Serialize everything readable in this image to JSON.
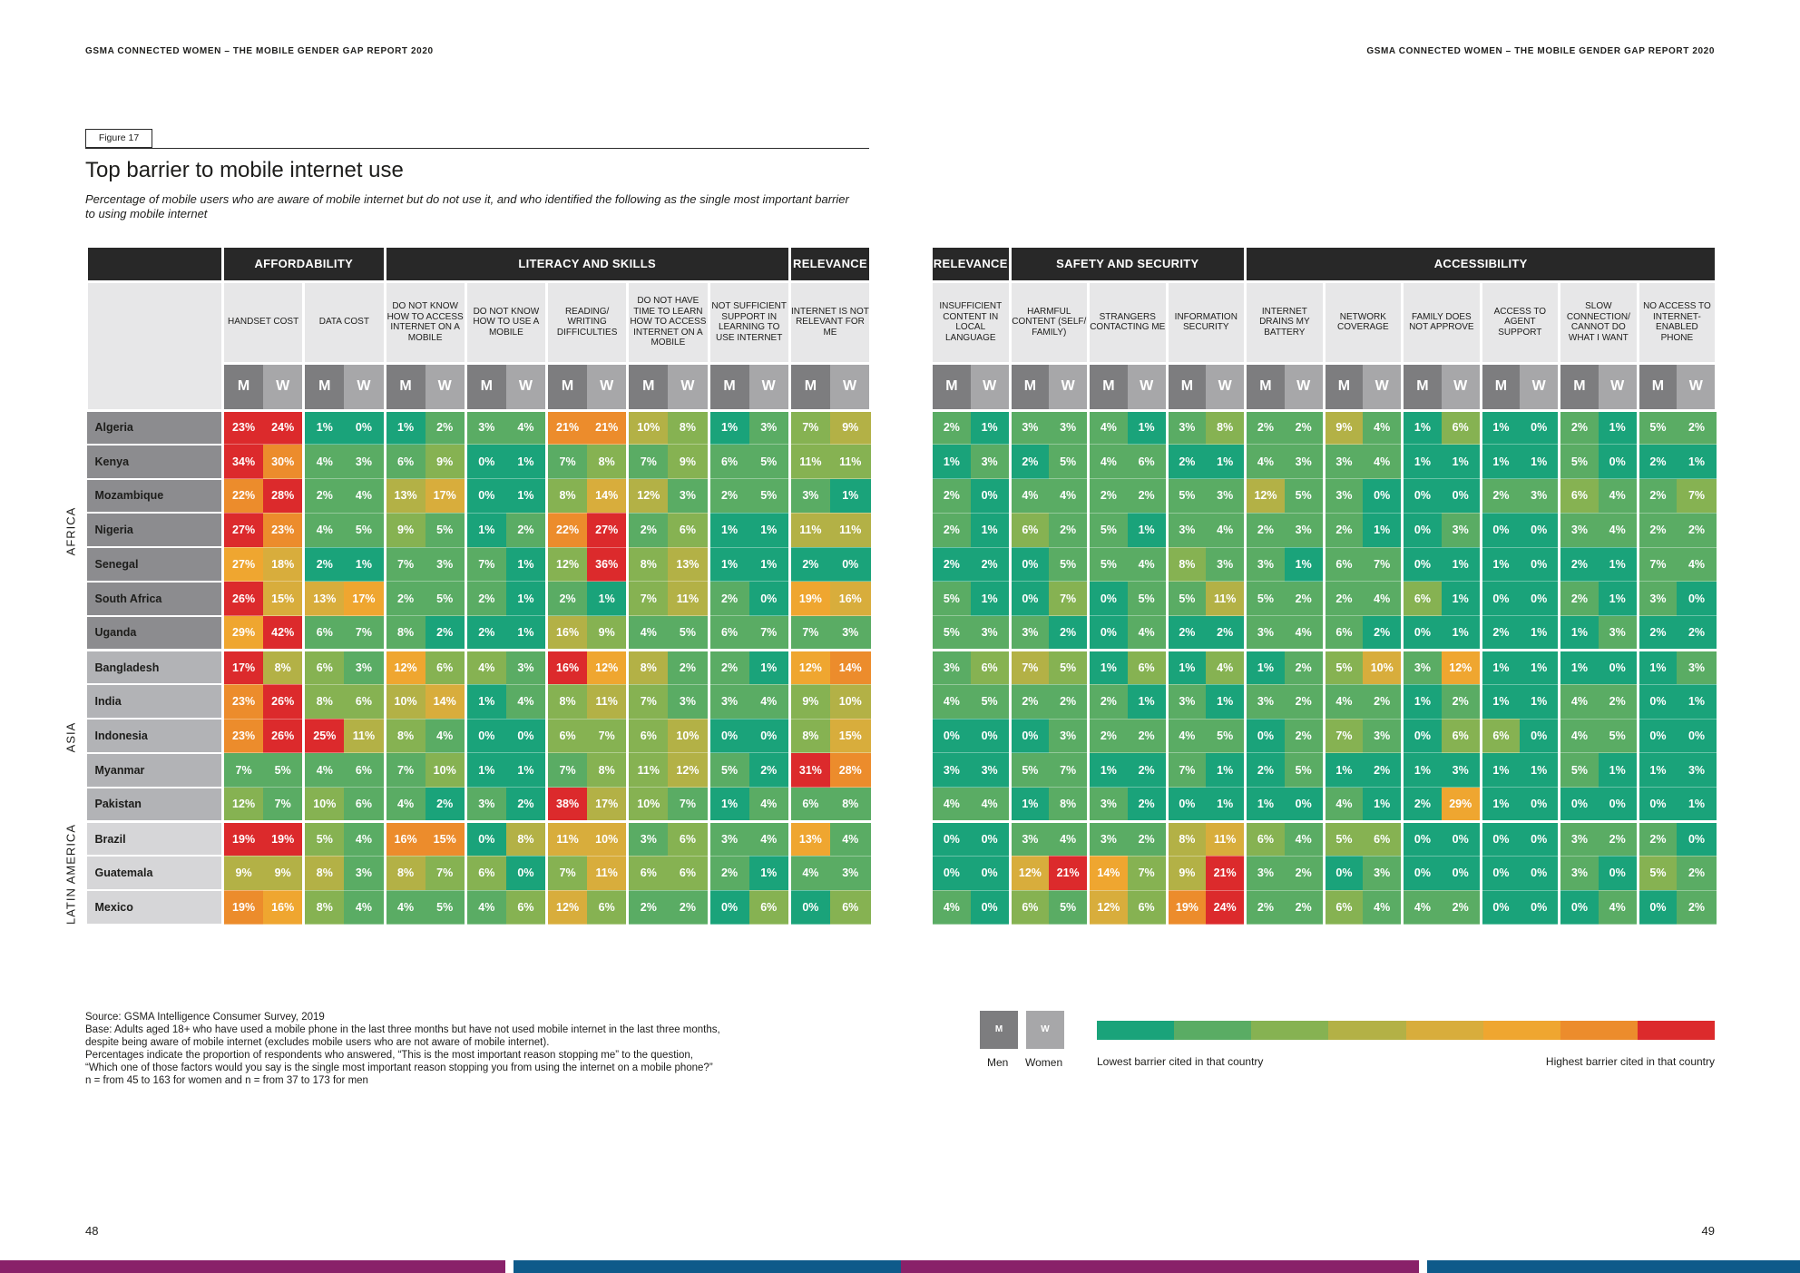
{
  "header": {
    "left": "GSMA CONNECTED WOMEN – THE MOBILE GENDER GAP REPORT 2020",
    "right": "GSMA CONNECTED WOMEN – THE MOBILE GENDER GAP REPORT 2020"
  },
  "figure": {
    "tag": "Figure 17",
    "title": "Top barrier to mobile internet use",
    "subtitle": "Percentage of mobile users who are aware of mobile internet but do not use it, and who identified the following as the single most important barrier to using mobile internet"
  },
  "gender_labels": {
    "men": "M",
    "women": "W"
  },
  "regions": [
    "AFRICA",
    "ASIA",
    "LATIN AMERICA"
  ],
  "countries": [
    "Algeria",
    "Kenya",
    "Mozambique",
    "Nigeria",
    "Senegal",
    "South Africa",
    "Uganda",
    "Bangladesh",
    "India",
    "Indonesia",
    "Myanmar",
    "Pakistan",
    "Brazil",
    "Guatemala",
    "Mexico"
  ],
  "left_table": {
    "groups": [
      "AFFORDABILITY",
      "LITERACY AND SKILLS",
      "RELEVANCE"
    ],
    "barriers": [
      "HANDSET COST",
      "DATA COST",
      "DO NOT KNOW HOW TO ACCESS INTERNET ON A MOBILE",
      "DO NOT KNOW HOW TO USE A MOBILE",
      "READING/ WRITING DIFFICULTIES",
      "DO NOT HAVE TIME TO LEARN HOW TO ACCESS INTERNET ON A MOBILE",
      "NOT SUFFICIENT SUPPORT IN LEARNING TO USE INTERNET",
      "INTERNET IS NOT RELEVANT FOR ME"
    ],
    "rows": [
      [
        "23%",
        "24%",
        "1%",
        "0%",
        "1%",
        "2%",
        "3%",
        "4%",
        "21%",
        "21%",
        "10%",
        "8%",
        "1%",
        "3%",
        "7%",
        "9%"
      ],
      [
        "34%",
        "30%",
        "4%",
        "3%",
        "6%",
        "9%",
        "0%",
        "1%",
        "7%",
        "8%",
        "7%",
        "9%",
        "6%",
        "5%",
        "11%",
        "11%"
      ],
      [
        "22%",
        "28%",
        "2%",
        "4%",
        "13%",
        "17%",
        "0%",
        "1%",
        "8%",
        "14%",
        "12%",
        "3%",
        "2%",
        "5%",
        "3%",
        "1%"
      ],
      [
        "27%",
        "23%",
        "4%",
        "5%",
        "9%",
        "5%",
        "1%",
        "2%",
        "22%",
        "27%",
        "2%",
        "6%",
        "1%",
        "1%",
        "11%",
        "11%"
      ],
      [
        "27%",
        "18%",
        "2%",
        "1%",
        "7%",
        "3%",
        "7%",
        "1%",
        "12%",
        "36%",
        "8%",
        "13%",
        "1%",
        "1%",
        "2%",
        "0%"
      ],
      [
        "26%",
        "15%",
        "13%",
        "17%",
        "2%",
        "5%",
        "2%",
        "1%",
        "2%",
        "1%",
        "7%",
        "11%",
        "2%",
        "0%",
        "19%",
        "16%"
      ],
      [
        "29%",
        "42%",
        "6%",
        "7%",
        "8%",
        "2%",
        "2%",
        "1%",
        "16%",
        "9%",
        "4%",
        "5%",
        "6%",
        "7%",
        "7%",
        "3%"
      ],
      [
        "17%",
        "8%",
        "6%",
        "3%",
        "12%",
        "6%",
        "4%",
        "3%",
        "16%",
        "12%",
        "8%",
        "2%",
        "2%",
        "1%",
        "12%",
        "14%"
      ],
      [
        "23%",
        "26%",
        "8%",
        "6%",
        "10%",
        "14%",
        "1%",
        "4%",
        "8%",
        "11%",
        "7%",
        "3%",
        "3%",
        "4%",
        "9%",
        "10%"
      ],
      [
        "23%",
        "26%",
        "25%",
        "11%",
        "8%",
        "4%",
        "0%",
        "0%",
        "6%",
        "7%",
        "6%",
        "10%",
        "0%",
        "0%",
        "8%",
        "15%"
      ],
      [
        "7%",
        "5%",
        "4%",
        "6%",
        "7%",
        "10%",
        "1%",
        "1%",
        "7%",
        "8%",
        "11%",
        "12%",
        "5%",
        "2%",
        "31%",
        "28%"
      ],
      [
        "12%",
        "7%",
        "10%",
        "6%",
        "4%",
        "2%",
        "3%",
        "2%",
        "38%",
        "17%",
        "10%",
        "7%",
        "1%",
        "4%",
        "6%",
        "8%"
      ],
      [
        "19%",
        "19%",
        "5%",
        "4%",
        "16%",
        "15%",
        "0%",
        "8%",
        "11%",
        "10%",
        "3%",
        "6%",
        "3%",
        "4%",
        "13%",
        "4%"
      ],
      [
        "9%",
        "9%",
        "8%",
        "3%",
        "8%",
        "7%",
        "6%",
        "0%",
        "7%",
        "11%",
        "6%",
        "6%",
        "2%",
        "1%",
        "4%",
        "3%"
      ],
      [
        "19%",
        "16%",
        "8%",
        "4%",
        "4%",
        "5%",
        "4%",
        "6%",
        "12%",
        "6%",
        "2%",
        "2%",
        "0%",
        "6%",
        "0%",
        "6%"
      ]
    ]
  },
  "right_table": {
    "groups": [
      "RELEVANCE",
      "SAFETY AND SECURITY",
      "ACCESSIBILITY"
    ],
    "barriers": [
      "INSUFFICIENT CONTENT IN LOCAL LANGUAGE",
      "HARMFUL CONTENT (SELF/ FAMILY)",
      "STRANGERS CONTACTING ME",
      "INFORMATION SECURITY",
      "INTERNET DRAINS MY BATTERY",
      "NETWORK COVERAGE",
      "FAMILY DOES NOT APPROVE",
      "ACCESS TO AGENT SUPPORT",
      "SLOW CONNECTION/ CANNOT DO WHAT I WANT",
      "NO ACCESS TO INTERNET-ENABLED PHONE"
    ],
    "rows": [
      [
        "2%",
        "1%",
        "3%",
        "3%",
        "4%",
        "1%",
        "3%",
        "8%",
        "2%",
        "2%",
        "9%",
        "4%",
        "1%",
        "6%",
        "1%",
        "0%",
        "2%",
        "1%",
        "5%",
        "2%"
      ],
      [
        "1%",
        "3%",
        "2%",
        "5%",
        "4%",
        "6%",
        "2%",
        "1%",
        "4%",
        "3%",
        "3%",
        "4%",
        "1%",
        "1%",
        "1%",
        "1%",
        "5%",
        "0%",
        "2%",
        "1%"
      ],
      [
        "2%",
        "0%",
        "4%",
        "4%",
        "2%",
        "2%",
        "5%",
        "3%",
        "12%",
        "5%",
        "3%",
        "0%",
        "0%",
        "0%",
        "2%",
        "3%",
        "6%",
        "4%",
        "2%",
        "7%"
      ],
      [
        "2%",
        "1%",
        "6%",
        "2%",
        "5%",
        "1%",
        "3%",
        "4%",
        "2%",
        "3%",
        "2%",
        "1%",
        "0%",
        "3%",
        "0%",
        "0%",
        "3%",
        "4%",
        "2%",
        "2%"
      ],
      [
        "2%",
        "2%",
        "0%",
        "5%",
        "5%",
        "4%",
        "8%",
        "3%",
        "3%",
        "1%",
        "6%",
        "7%",
        "0%",
        "1%",
        "1%",
        "0%",
        "2%",
        "1%",
        "7%",
        "4%"
      ],
      [
        "5%",
        "1%",
        "0%",
        "7%",
        "0%",
        "5%",
        "5%",
        "11%",
        "5%",
        "2%",
        "2%",
        "4%",
        "6%",
        "1%",
        "0%",
        "0%",
        "2%",
        "1%",
        "3%",
        "0%"
      ],
      [
        "5%",
        "3%",
        "3%",
        "2%",
        "0%",
        "4%",
        "2%",
        "2%",
        "3%",
        "4%",
        "6%",
        "2%",
        "0%",
        "1%",
        "2%",
        "1%",
        "1%",
        "3%",
        "2%",
        "2%"
      ],
      [
        "3%",
        "6%",
        "7%",
        "5%",
        "1%",
        "6%",
        "1%",
        "4%",
        "1%",
        "2%",
        "5%",
        "10%",
        "3%",
        "12%",
        "1%",
        "1%",
        "1%",
        "0%",
        "1%",
        "3%"
      ],
      [
        "4%",
        "5%",
        "2%",
        "2%",
        "2%",
        "1%",
        "3%",
        "1%",
        "3%",
        "2%",
        "4%",
        "2%",
        "1%",
        "2%",
        "1%",
        "1%",
        "4%",
        "2%",
        "0%",
        "1%"
      ],
      [
        "0%",
        "0%",
        "0%",
        "3%",
        "2%",
        "2%",
        "4%",
        "5%",
        "0%",
        "2%",
        "7%",
        "3%",
        "0%",
        "6%",
        "6%",
        "0%",
        "4%",
        "5%",
        "0%",
        "0%"
      ],
      [
        "3%",
        "3%",
        "5%",
        "7%",
        "1%",
        "2%",
        "7%",
        "1%",
        "2%",
        "5%",
        "1%",
        "2%",
        "1%",
        "3%",
        "1%",
        "1%",
        "5%",
        "1%",
        "1%",
        "3%"
      ],
      [
        "4%",
        "4%",
        "1%",
        "8%",
        "3%",
        "2%",
        "0%",
        "1%",
        "1%",
        "0%",
        "4%",
        "1%",
        "2%",
        "29%",
        "1%",
        "0%",
        "0%",
        "0%",
        "0%",
        "1%"
      ],
      [
        "0%",
        "0%",
        "3%",
        "4%",
        "3%",
        "2%",
        "8%",
        "11%",
        "6%",
        "4%",
        "5%",
        "6%",
        "0%",
        "0%",
        "0%",
        "0%",
        "3%",
        "2%",
        "2%",
        "0%"
      ],
      [
        "0%",
        "0%",
        "12%",
        "21%",
        "14%",
        "7%",
        "9%",
        "21%",
        "3%",
        "2%",
        "0%",
        "3%",
        "0%",
        "0%",
        "0%",
        "0%",
        "3%",
        "0%",
        "5%",
        "2%"
      ],
      [
        "4%",
        "0%",
        "6%",
        "5%",
        "12%",
        "6%",
        "19%",
        "24%",
        "2%",
        "2%",
        "6%",
        "4%",
        "4%",
        "2%",
        "0%",
        "0%",
        "0%",
        "4%",
        "0%",
        "2%"
      ]
    ]
  },
  "notes": [
    "Source: GSMA Intelligence Consumer Survey, 2019",
    "Base: Adults aged 18+ who have used a mobile phone in the last three months but have not used mobile internet in the last three months,",
    "despite being aware of mobile internet (excludes mobile users who are not aware of mobile internet).",
    "Percentages indicate the proportion of respondents who answered, “This is the most important reason stopping me” to the question,",
    "“Which one of those factors would you say is the single most important reason stopping you from using the internet on a mobile phone?”",
    "n = from 45 to 163 for women and n = from 37 to 173 for men"
  ],
  "legend": {
    "men_key": "M",
    "women_key": "W",
    "men_label": "Men",
    "women_label": "Women",
    "low_label": "Lowest barrier cited in that country",
    "high_label": "Highest barrier cited in that country",
    "scale_colors": [
      "#1aa37a",
      "#5aac64",
      "#86b252",
      "#b3b146",
      "#d8ad3c",
      "#efa630",
      "#ec8c2c",
      "#dc2a2c"
    ]
  },
  "colors": {
    "group_header": "#282828",
    "men_header": "#7d7d7f",
    "women_header": "#a7a7a9",
    "footer_strip": [
      "#892169",
      "#0e5a8a",
      "#892169",
      "#0e5a8a"
    ]
  },
  "page_numbers": {
    "left": "48",
    "right": "49"
  }
}
